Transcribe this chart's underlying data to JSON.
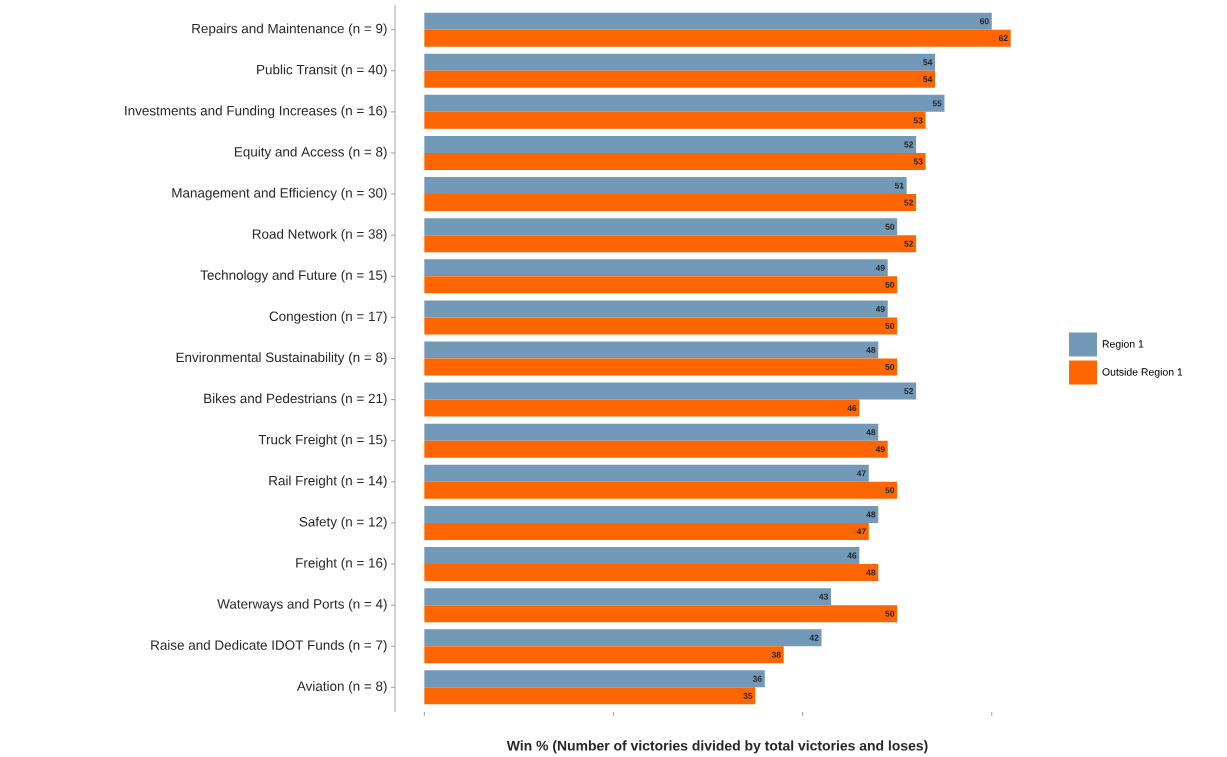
{
  "chart_data": {
    "type": "bar",
    "orientation": "horizontal",
    "xlabel": "Win % (Number of victories divided by total victories and loses)",
    "categories": [
      "Repairs and Maintenance (n = 9)",
      "Public Transit (n = 40)",
      "Investments and Funding Increases (n = 16)",
      "Equity and Access (n = 8)",
      "Management and Efficiency (n = 30)",
      "Road Network (n = 38)",
      "Technology and Future (n = 15)",
      "Congestion (n = 17)",
      "Environmental Sustainability (n = 8)",
      "Bikes and Pedestrians (n = 21)",
      "Truck Freight (n = 15)",
      "Rail Freight (n = 14)",
      "Safety (n = 12)",
      "Freight (n = 16)",
      "Waterways and Ports (n = 4)",
      "Raise and Dedicate IDOT Funds (n = 7)",
      "Aviation (n = 8)"
    ],
    "series": [
      {
        "name": "Region 1",
        "color": "#7399b8",
        "values": [
          60,
          54,
          55,
          52,
          51,
          50,
          49,
          49,
          48,
          52,
          48,
          47,
          48,
          46,
          43,
          42,
          36
        ]
      },
      {
        "name": "Outside Region 1",
        "color": "#ff6600",
        "values": [
          62,
          54,
          53,
          53,
          52,
          52,
          50,
          50,
          50,
          46,
          49,
          50,
          47,
          48,
          50,
          38,
          35
        ]
      }
    ],
    "xticks": [
      {
        "value": 0,
        "label": null
      },
      {
        "value": 20,
        "label": null
      },
      {
        "value": 40,
        "label": null
      },
      {
        "value": 60,
        "label": null
      }
    ],
    "tick_labels": "y",
    "data_labels": true,
    "legend": "right"
  }
}
